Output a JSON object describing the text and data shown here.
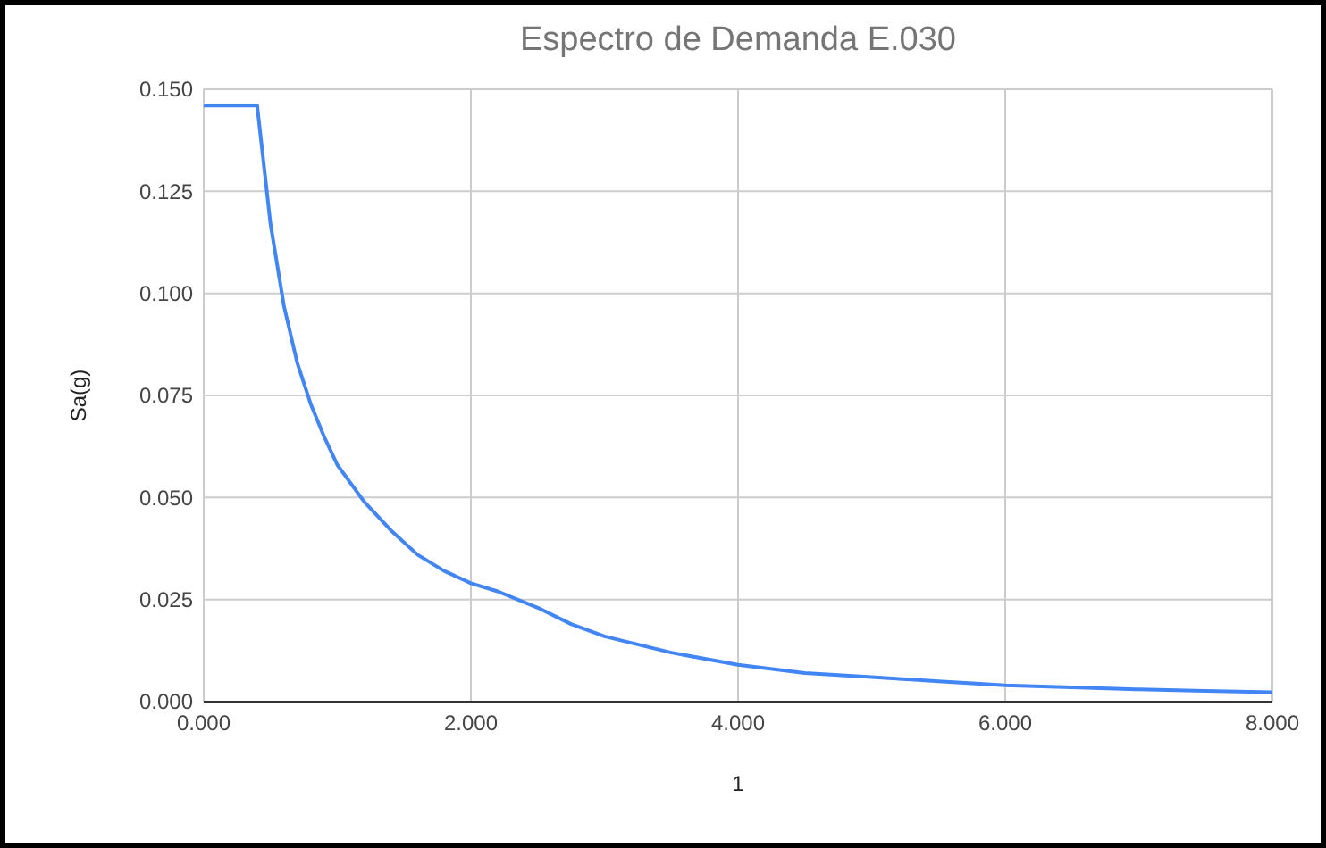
{
  "chart_data": {
    "type": "line",
    "title": "Espectro de Demanda E.030",
    "xlabel": "1",
    "ylabel": "Sa(g)",
    "x": [
      0,
      0.4,
      0.5,
      0.6,
      0.7,
      0.8,
      0.9,
      1.0,
      1.2,
      1.4,
      1.6,
      1.8,
      2.0,
      2.2,
      2.5,
      2.75,
      3.0,
      3.5,
      4.0,
      4.5,
      5.0,
      5.5,
      6.0,
      6.5,
      7.0,
      7.5,
      8.0
    ],
    "series": [
      {
        "color": "#4285f4",
        "values": [
          0.146,
          0.146,
          0.117,
          0.097,
          0.083,
          0.073,
          0.065,
          0.058,
          0.049,
          0.042,
          0.036,
          0.032,
          0.029,
          0.027,
          0.023,
          0.019,
          0.016,
          0.012,
          0.009,
          0.007,
          0.006,
          0.005,
          0.004,
          0.0035,
          0.003,
          0.0026,
          0.0023
        ]
      }
    ],
    "xlim": [
      0,
      8
    ],
    "xticks": [
      {
        "value": 0,
        "label": "0.000"
      },
      {
        "value": 2,
        "label": "2.000"
      },
      {
        "value": 4,
        "label": "4.000"
      },
      {
        "value": 6,
        "label": "6.000"
      },
      {
        "value": 8,
        "label": "8.000"
      }
    ],
    "ylim": [
      0,
      0.15
    ],
    "yticks": [
      {
        "value": 0,
        "label": "0.000"
      },
      {
        "value": 0.025,
        "label": "0.025"
      },
      {
        "value": 0.05,
        "label": "0.050"
      },
      {
        "value": 0.075,
        "label": "0.075"
      },
      {
        "value": 0.1,
        "label": "0.100"
      },
      {
        "value": 0.125,
        "label": "0.125"
      },
      {
        "value": 0.15,
        "label": "0.150"
      }
    ],
    "grid": true,
    "marker": "none",
    "line_style": "solid"
  }
}
